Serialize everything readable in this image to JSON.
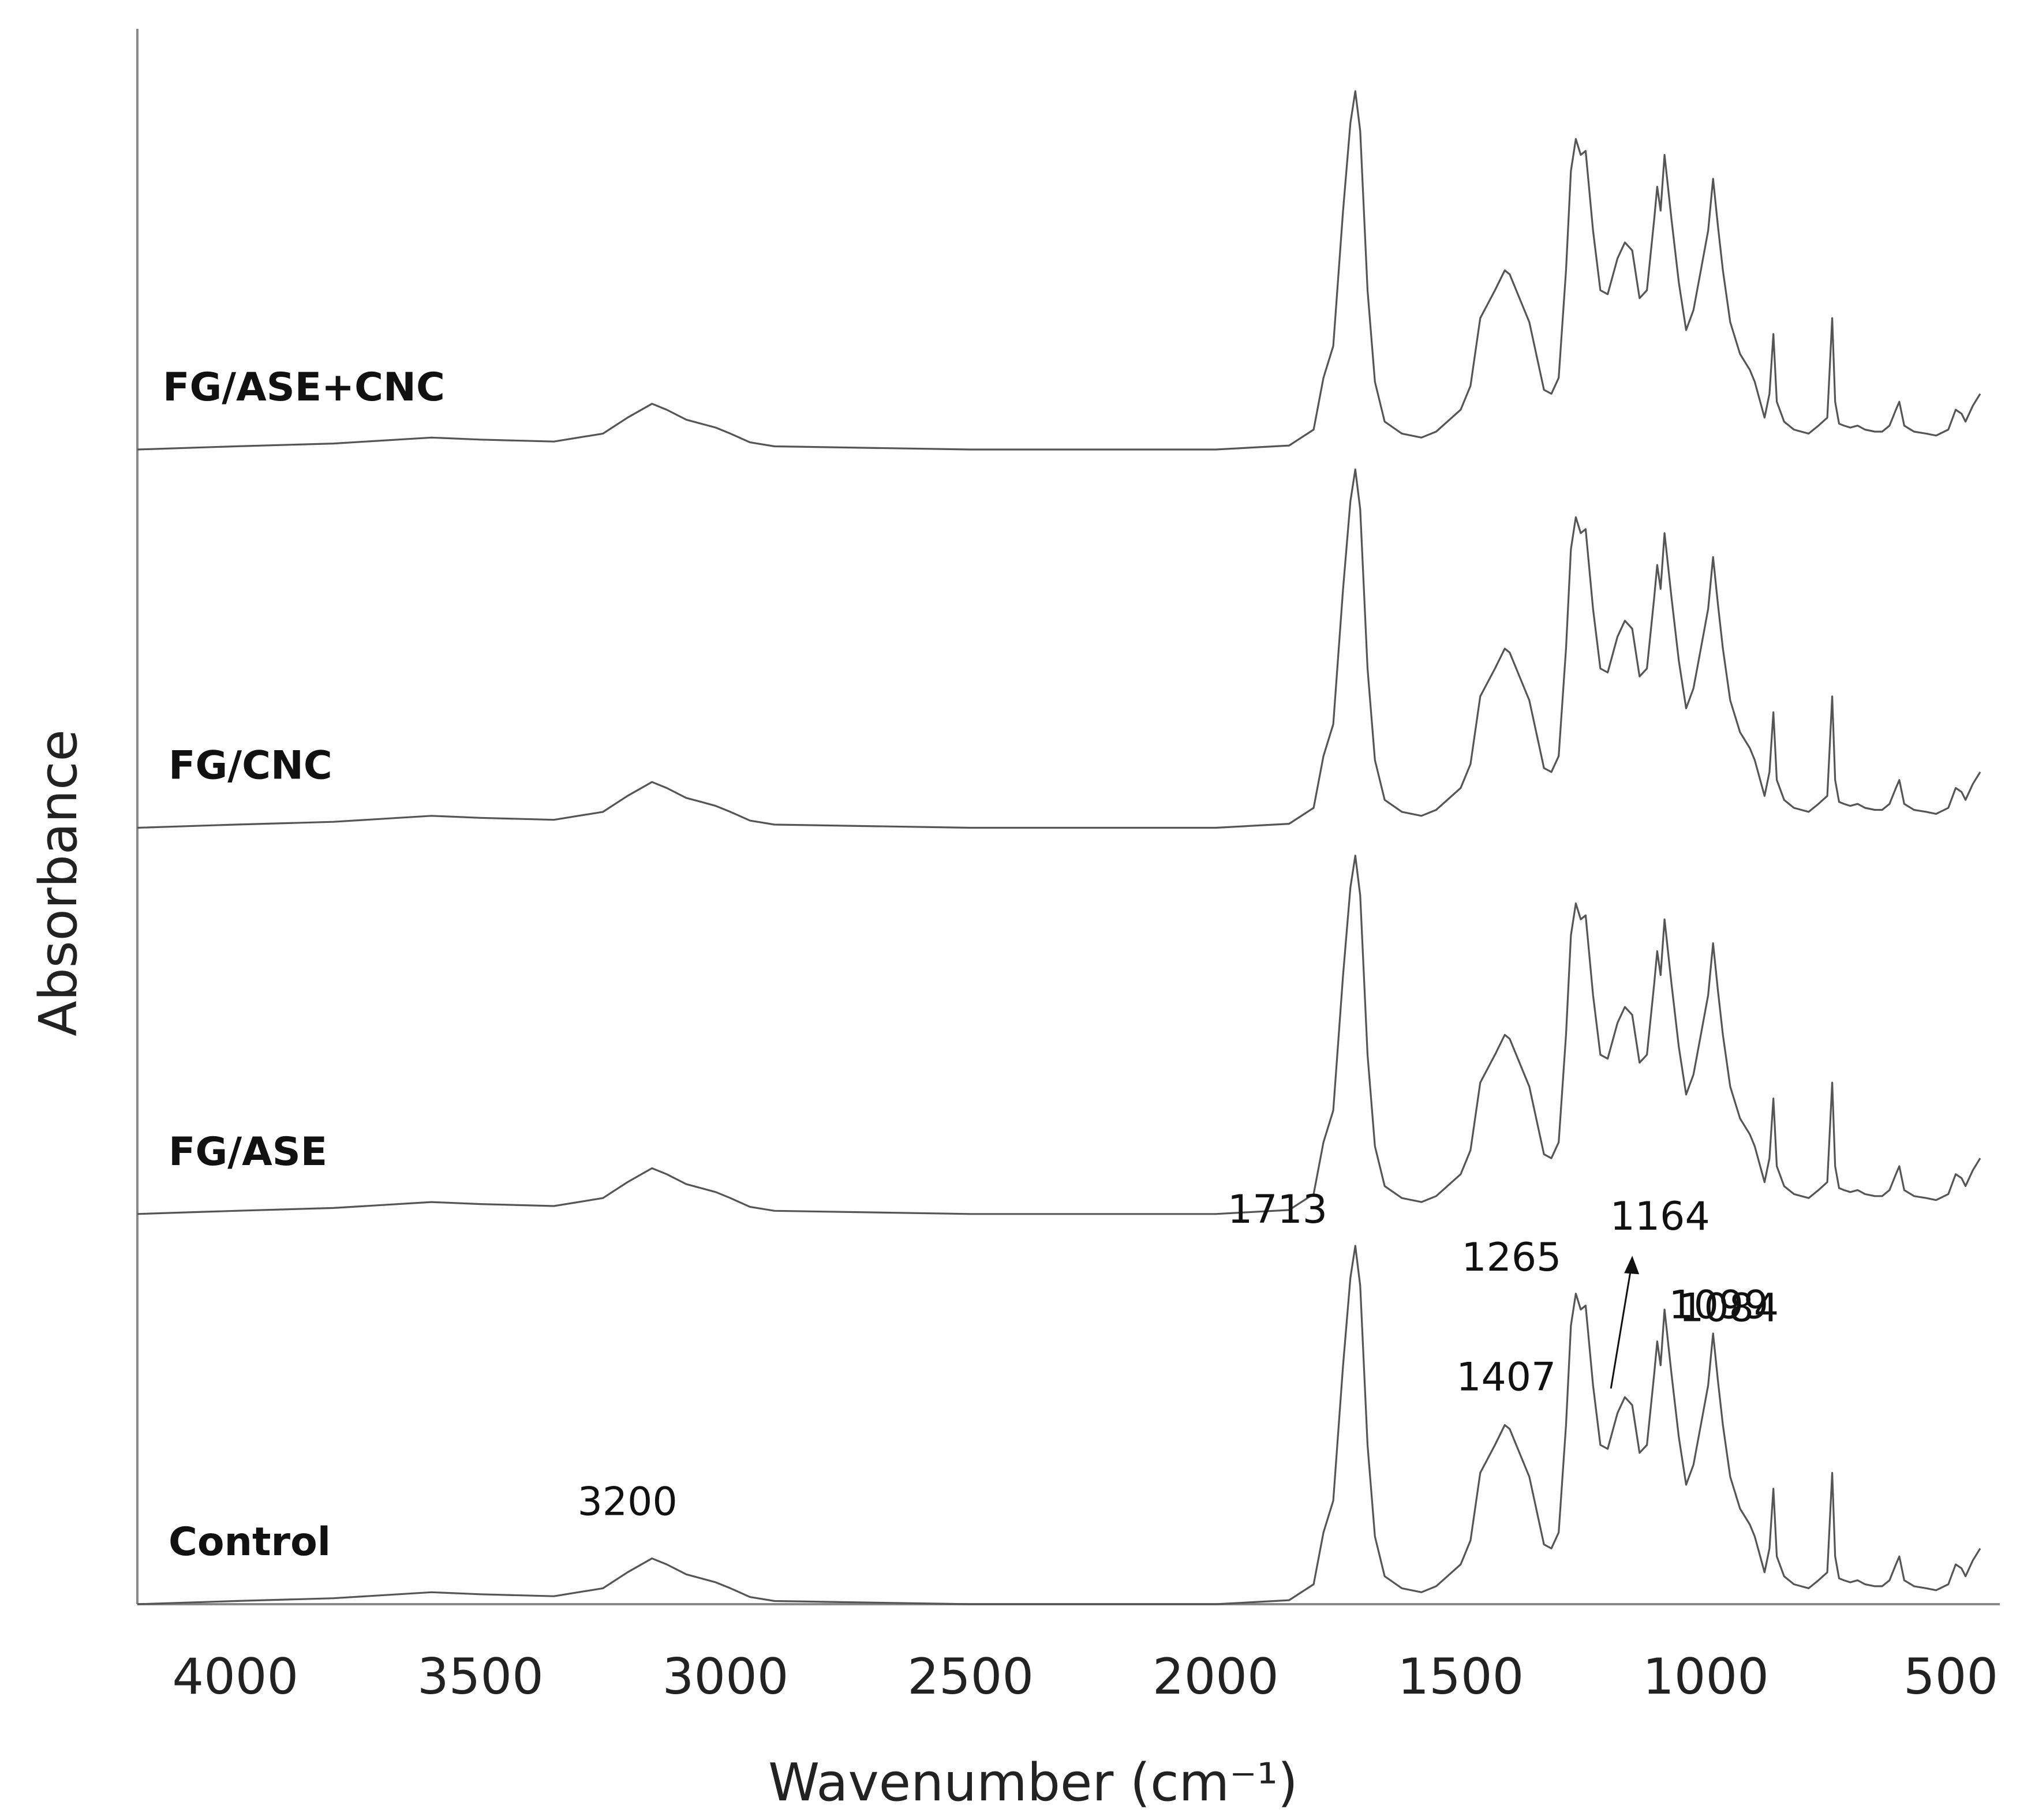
{
  "chart_data": {
    "type": "line",
    "xlabel": "Wavenumber (cm⁻¹)",
    "ylabel": "Absorbance",
    "xlim": [
      4200,
      400
    ],
    "x_reversed": true,
    "grid": false,
    "ticks": [
      {
        "value": 4000,
        "label": "4000"
      },
      {
        "value": 3500,
        "label": "3500"
      },
      {
        "value": 3000,
        "label": "3000"
      },
      {
        "value": 2500,
        "label": "2500"
      },
      {
        "value": 2000,
        "label": "2000"
      },
      {
        "value": 1500,
        "label": "1500"
      },
      {
        "value": 1000,
        "label": "1000"
      },
      {
        "value": 500,
        "label": "500"
      }
    ],
    "series": [
      {
        "name": "FG/ASE+CNC",
        "offset": 2.9
      },
      {
        "name": "FG/CNC",
        "offset": 1.95
      },
      {
        "name": "FG/ASE",
        "offset": 0.98
      },
      {
        "name": "Control",
        "offset": 0.0
      }
    ],
    "spectrum": [
      [
        4200,
        0.0
      ],
      [
        4000,
        0.008
      ],
      [
        3800,
        0.015
      ],
      [
        3600,
        0.03
      ],
      [
        3500,
        0.025
      ],
      [
        3350,
        0.02
      ],
      [
        3250,
        0.04
      ],
      [
        3200,
        0.08
      ],
      [
        3150,
        0.115
      ],
      [
        3120,
        0.1
      ],
      [
        3080,
        0.075
      ],
      [
        3050,
        0.065
      ],
      [
        3020,
        0.055
      ],
      [
        2990,
        0.04
      ],
      [
        2950,
        0.018
      ],
      [
        2900,
        0.008
      ],
      [
        2500,
        0.0
      ],
      [
        2000,
        0.0
      ],
      [
        1850,
        0.01
      ],
      [
        1800,
        0.05
      ],
      [
        1780,
        0.18
      ],
      [
        1760,
        0.26
      ],
      [
        1740,
        0.6
      ],
      [
        1725,
        0.82
      ],
      [
        1715,
        0.9
      ],
      [
        1705,
        0.8
      ],
      [
        1690,
        0.4
      ],
      [
        1675,
        0.17
      ],
      [
        1655,
        0.07
      ],
      [
        1620,
        0.04
      ],
      [
        1580,
        0.03
      ],
      [
        1550,
        0.045
      ],
      [
        1500,
        0.1
      ],
      [
        1480,
        0.16
      ],
      [
        1460,
        0.33
      ],
      [
        1430,
        0.4
      ],
      [
        1410,
        0.45
      ],
      [
        1400,
        0.44
      ],
      [
        1380,
        0.38
      ],
      [
        1360,
        0.32
      ],
      [
        1330,
        0.15
      ],
      [
        1315,
        0.14
      ],
      [
        1300,
        0.18
      ],
      [
        1285,
        0.45
      ],
      [
        1275,
        0.7
      ],
      [
        1265,
        0.78
      ],
      [
        1255,
        0.74
      ],
      [
        1245,
        0.75
      ],
      [
        1230,
        0.55
      ],
      [
        1215,
        0.4
      ],
      [
        1200,
        0.39
      ],
      [
        1180,
        0.48
      ],
      [
        1165,
        0.52
      ],
      [
        1150,
        0.5
      ],
      [
        1135,
        0.38
      ],
      [
        1120,
        0.4
      ],
      [
        1105,
        0.58
      ],
      [
        1099,
        0.66
      ],
      [
        1092,
        0.6
      ],
      [
        1084,
        0.74
      ],
      [
        1070,
        0.58
      ],
      [
        1055,
        0.42
      ],
      [
        1040,
        0.3
      ],
      [
        1025,
        0.35
      ],
      [
        1010,
        0.45
      ],
      [
        995,
        0.55
      ],
      [
        985,
        0.68
      ],
      [
        975,
        0.56
      ],
      [
        965,
        0.45
      ],
      [
        950,
        0.32
      ],
      [
        930,
        0.24
      ],
      [
        910,
        0.2
      ],
      [
        900,
        0.17
      ],
      [
        880,
        0.08
      ],
      [
        870,
        0.14
      ],
      [
        862,
        0.29
      ],
      [
        855,
        0.12
      ],
      [
        840,
        0.07
      ],
      [
        820,
        0.05
      ],
      [
        790,
        0.04
      ],
      [
        770,
        0.06
      ],
      [
        752,
        0.08
      ],
      [
        742,
        0.33
      ],
      [
        736,
        0.12
      ],
      [
        728,
        0.065
      ],
      [
        718,
        0.06
      ],
      [
        705,
        0.055
      ],
      [
        690,
        0.06
      ],
      [
        675,
        0.05
      ],
      [
        655,
        0.045
      ],
      [
        640,
        0.045
      ],
      [
        625,
        0.06
      ],
      [
        612,
        0.1
      ],
      [
        605,
        0.12
      ],
      [
        595,
        0.06
      ],
      [
        575,
        0.045
      ],
      [
        550,
        0.04
      ],
      [
        530,
        0.035
      ],
      [
        505,
        0.05
      ],
      [
        490,
        0.1
      ],
      [
        478,
        0.09
      ],
      [
        470,
        0.07
      ],
      [
        455,
        0.11
      ],
      [
        440,
        0.14
      ]
    ],
    "annotations": [
      {
        "label": "3200",
        "x": 3200,
        "y": 0.115
      },
      {
        "label": "1713",
        "x": 1713,
        "y": 0.9
      },
      {
        "label": "1407",
        "x": 1407,
        "y": 0.45
      },
      {
        "label": "1265",
        "x": 1265,
        "y": 0.78
      },
      {
        "label": "1164",
        "x": 1164,
        "y": 0.52
      },
      {
        "label": "1099",
        "x": 1099,
        "y": 0.66
      },
      {
        "label": "1084",
        "x": 1084,
        "y": 0.74
      }
    ]
  }
}
